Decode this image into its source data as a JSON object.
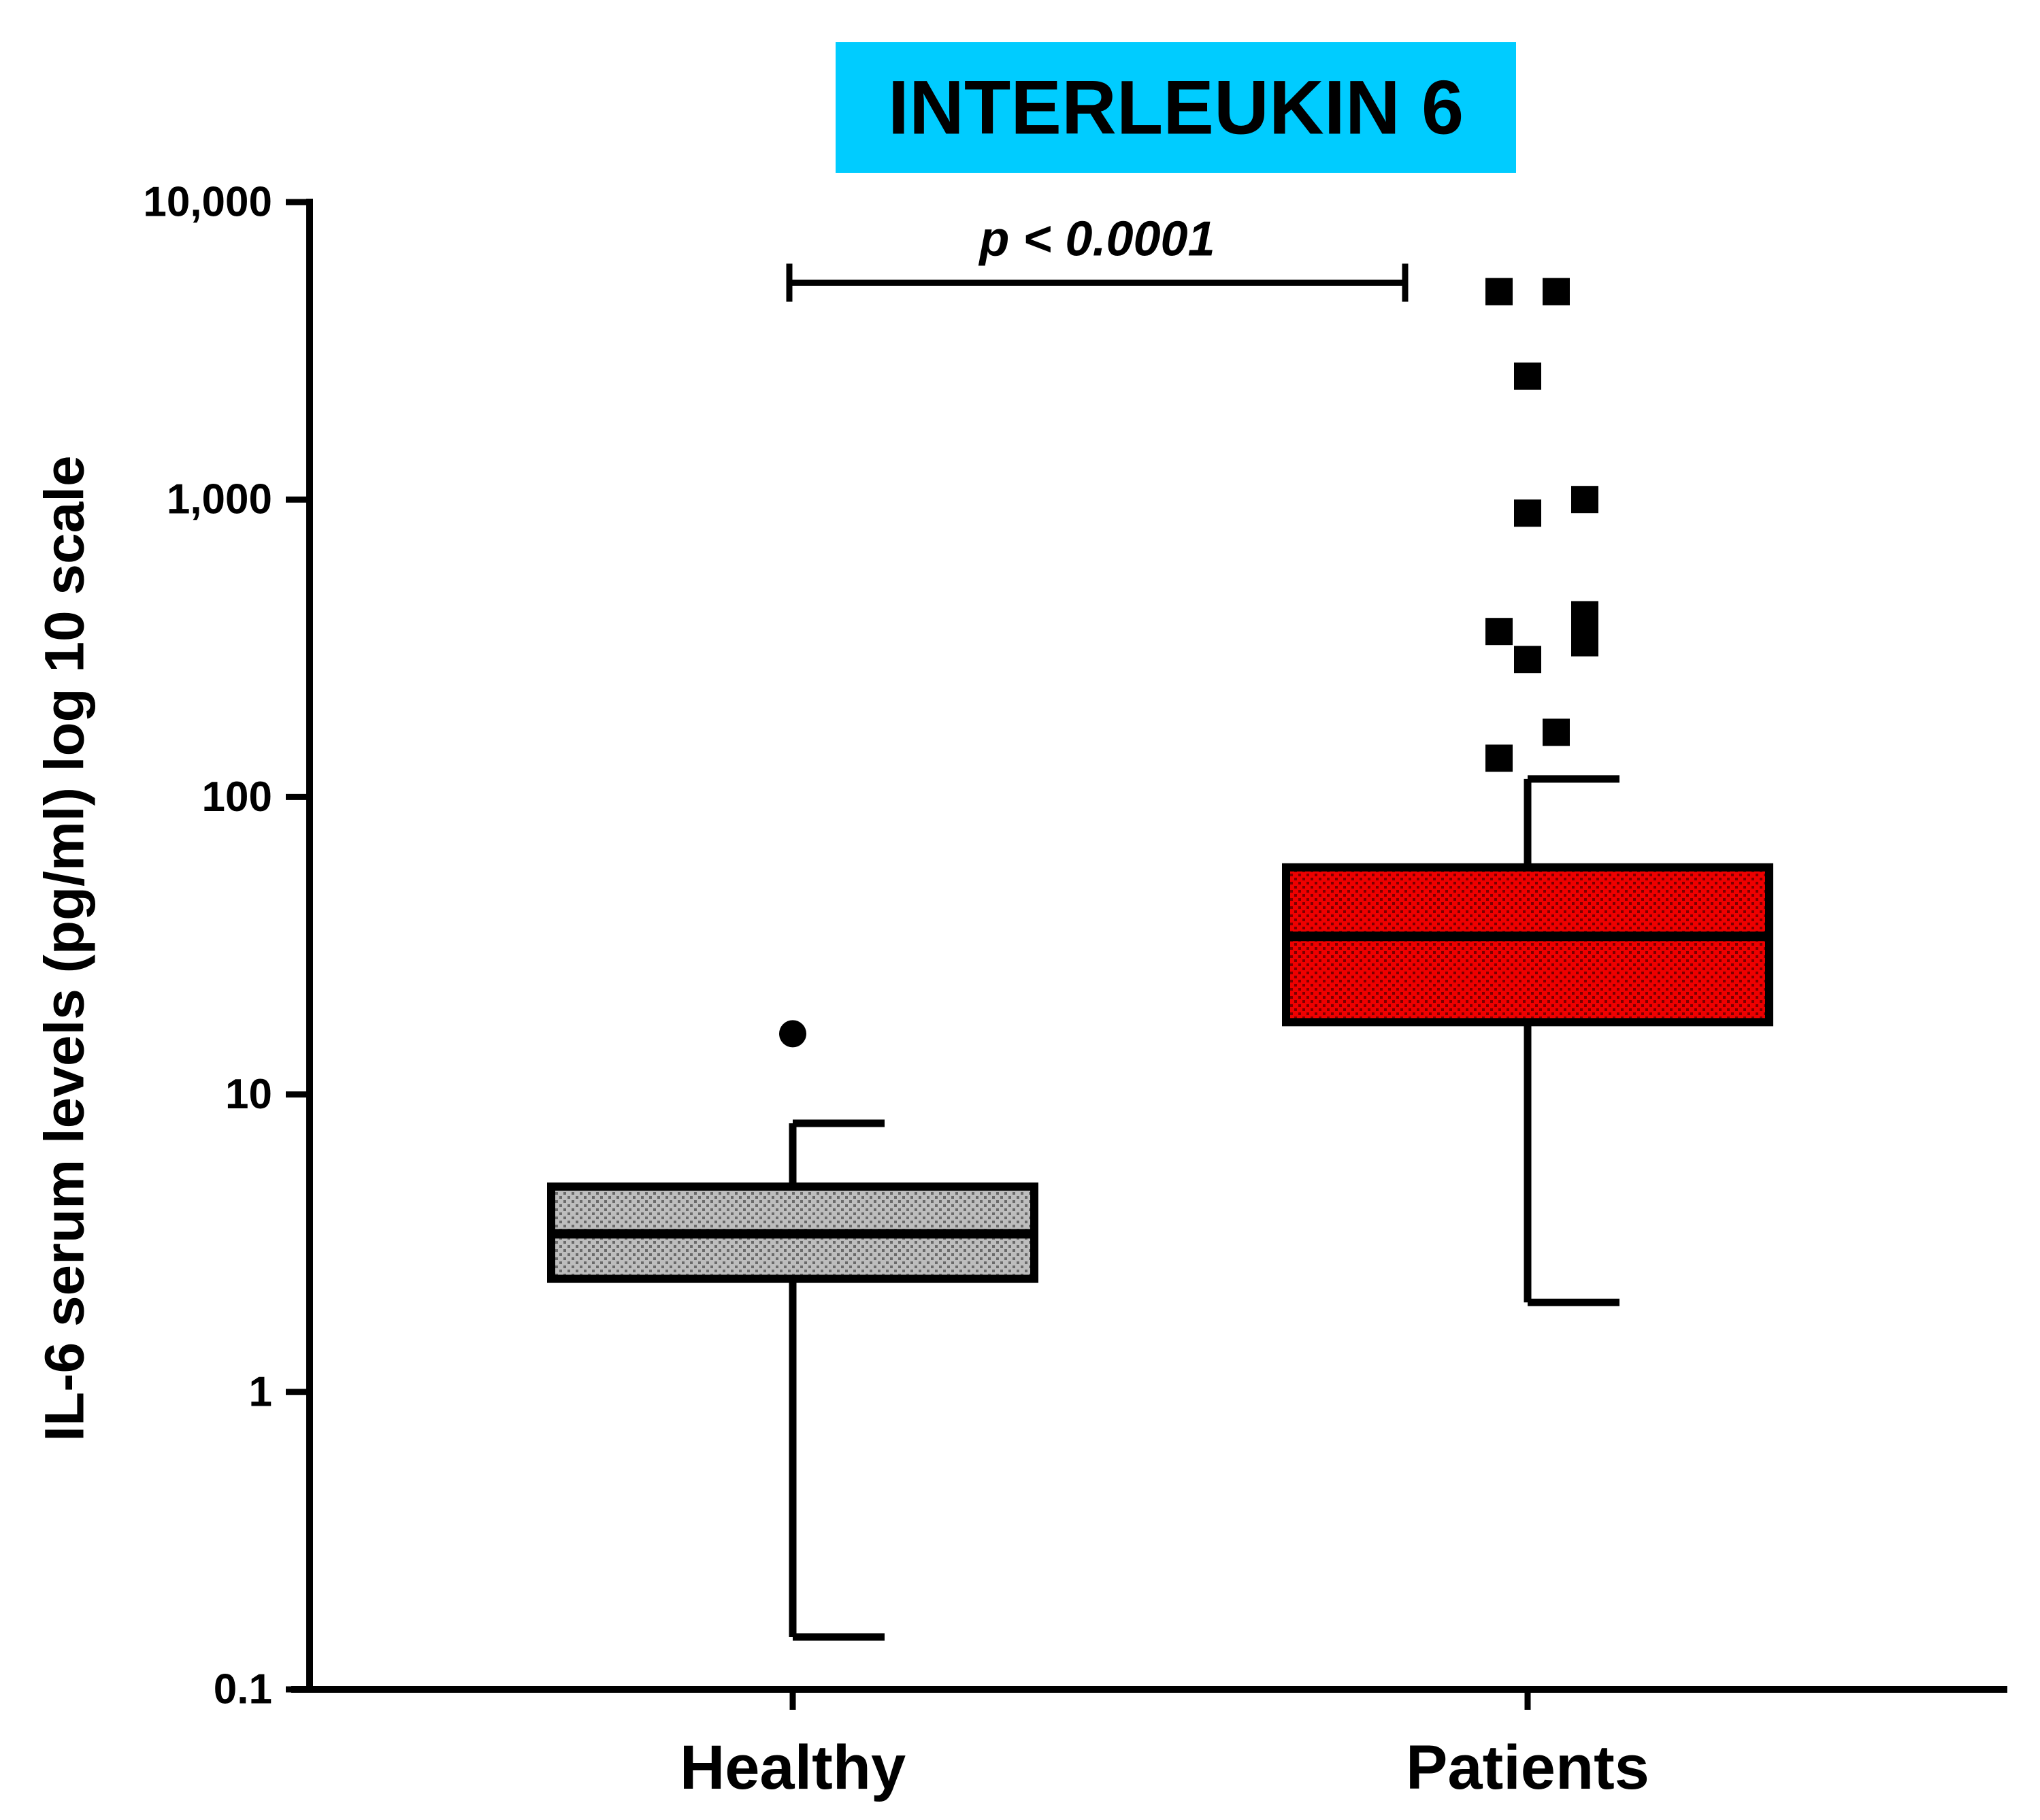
{
  "chart_data": {
    "type": "box",
    "title": "INTERLEUKIN 6",
    "title_background": "#00CCFF",
    "xlabel": "",
    "ylabel": "IL-6 serum levels (pg/ml) log 10 scale",
    "y_scale": "log10",
    "ylim": [
      0.1,
      10000
    ],
    "y_ticks": [
      {
        "value": 0.1,
        "label": "0.1"
      },
      {
        "value": 1,
        "label": "1"
      },
      {
        "value": 10,
        "label": "10"
      },
      {
        "value": 100,
        "label": "100"
      },
      {
        "value": 1000,
        "label": "1,000"
      },
      {
        "value": 10000,
        "label": "10,000"
      }
    ],
    "categories": [
      "Healthy",
      "Patients"
    ],
    "groups": [
      {
        "name": "Healthy",
        "fill": "#BDBDBD",
        "whisker_low": 0.15,
        "q1": 2.4,
        "median": 3.4,
        "q3": 4.9,
        "whisker_high": 8,
        "outliers": [
          {
            "value": 16,
            "offset": 0,
            "marker": "circle"
          }
        ]
      },
      {
        "name": "Patients",
        "fill": "#EE0000",
        "whisker_low": 2,
        "q1": 17.5,
        "median": 34,
        "q3": 58,
        "whisker_high": 115,
        "outliers": [
          {
            "value": 5000,
            "offset": -0.12,
            "marker": "square"
          },
          {
            "value": 5000,
            "offset": 0.12,
            "marker": "square"
          },
          {
            "value": 2600,
            "offset": 0,
            "marker": "square"
          },
          {
            "value": 1000,
            "offset": 0.24,
            "marker": "square"
          },
          {
            "value": 900,
            "offset": 0,
            "marker": "square"
          },
          {
            "value": 410,
            "offset": 0.24,
            "marker": "square"
          },
          {
            "value": 370,
            "offset": 0.24,
            "marker": "square"
          },
          {
            "value": 330,
            "offset": 0.24,
            "marker": "square"
          },
          {
            "value": 360,
            "offset": -0.12,
            "marker": "square"
          },
          {
            "value": 290,
            "offset": 0,
            "marker": "square"
          },
          {
            "value": 165,
            "offset": 0.12,
            "marker": "square"
          },
          {
            "value": 135,
            "offset": -0.12,
            "marker": "square"
          }
        ]
      }
    ],
    "annotation": {
      "text": "p < 0.0001",
      "from": "Healthy",
      "to": "Patients",
      "value": 5500
    }
  }
}
